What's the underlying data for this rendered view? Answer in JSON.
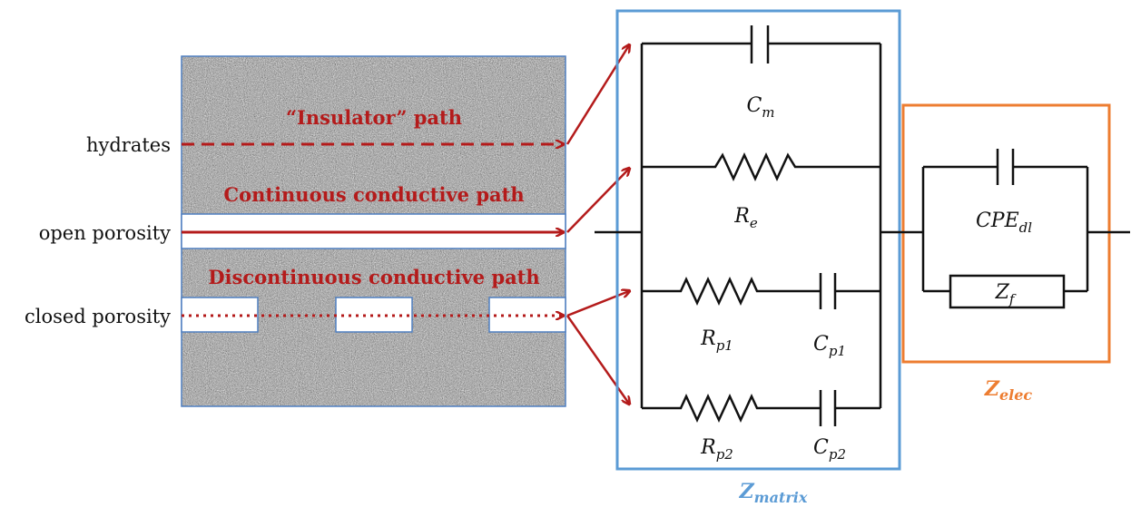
{
  "labels": {
    "hydrates": "hydrates",
    "open_porosity": "open porosity",
    "closed_porosity": "closed porosity"
  },
  "paths": {
    "insulator": "“Insulator” path",
    "continuous": "Continuous conductive path",
    "discontinuous": "Discontinuous conductive path"
  },
  "components": {
    "cm": {
      "main": "C",
      "sub": "m"
    },
    "re": {
      "main": "R",
      "sub": "e"
    },
    "rp1": {
      "main": "R",
      "sub": "p1"
    },
    "cp1": {
      "main": "C",
      "sub": "p1"
    },
    "rp2": {
      "main": "R",
      "sub": "p2"
    },
    "cp2": {
      "main": "C",
      "sub": "p2"
    },
    "cpe": {
      "main": "CPE",
      "sub": "dl"
    },
    "zf": {
      "main": "Z",
      "sub": "f"
    }
  },
  "boxes": {
    "matrix": {
      "main": "Z",
      "sub": "matrix",
      "color": "#5b9bd5"
    },
    "elec": {
      "main": "Z",
      "sub": "elec",
      "color": "#ed7d31"
    }
  },
  "colors": {
    "path_red": "#b41b1b",
    "wire": "#111111",
    "material_border": "#4f7fc0"
  }
}
